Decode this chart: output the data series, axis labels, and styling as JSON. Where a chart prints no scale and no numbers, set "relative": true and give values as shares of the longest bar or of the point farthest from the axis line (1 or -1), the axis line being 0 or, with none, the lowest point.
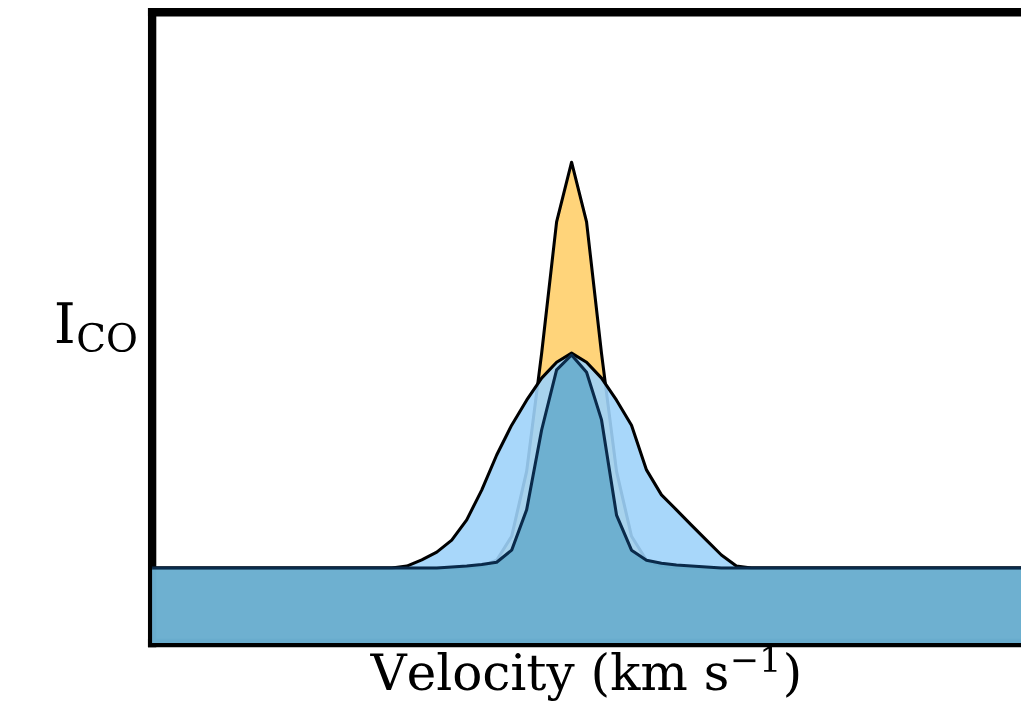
{
  "chart_data": {
    "type": "area",
    "relative": true,
    "ylabel": "I$_{CO}$",
    "xlabel": "Velocity (km s$^{−1}$)",
    "tick_labels": false,
    "grid": false,
    "legend": false,
    "categories": [
      null,
      null,
      null,
      null,
      null,
      null,
      null,
      null,
      null,
      null,
      null,
      null,
      null,
      null,
      null,
      null,
      null,
      null,
      null,
      null,
      null,
      null,
      null,
      null,
      null,
      null,
      null,
      null,
      null,
      null,
      null,
      null,
      null,
      null,
      null,
      null,
      null,
      null,
      null,
      null,
      null,
      null,
      null,
      null,
      null,
      null,
      null,
      null,
      null,
      null,
      null,
      null,
      null,
      null,
      null,
      null,
      null,
      null,
      null
    ],
    "series": [
      {
        "color": "#ffd47a",
        "values": [
          0.156,
          0.156,
          0.156,
          0.156,
          0.156,
          0.156,
          0.156,
          0.156,
          0.156,
          0.156,
          0.156,
          0.156,
          0.156,
          0.156,
          0.156,
          0.156,
          0.156,
          0.156,
          0.156,
          0.156,
          0.156,
          0.156,
          0.159,
          0.172,
          0.222,
          0.357,
          0.602,
          0.876,
          1.0,
          0.876,
          0.602,
          0.357,
          0.222,
          0.172,
          0.159,
          0.156,
          0.156,
          0.156,
          0.156,
          0.156,
          0.156,
          0.156,
          0.156,
          0.156,
          0.156,
          0.156,
          0.156,
          0.156,
          0.156,
          0.156,
          0.156,
          0.156,
          0.156,
          0.156,
          0.156,
          0.156,
          0.156,
          0.156,
          0.156
        ]
      },
      {
        "color": "#9fd3fa",
        "values": [
          0.156,
          0.156,
          0.156,
          0.156,
          0.156,
          0.156,
          0.156,
          0.156,
          0.156,
          0.156,
          0.156,
          0.156,
          0.156,
          0.156,
          0.156,
          0.156,
          0.156,
          0.16,
          0.173,
          0.189,
          0.214,
          0.256,
          0.318,
          0.391,
          0.453,
          0.505,
          0.551,
          0.584,
          0.603,
          0.584,
          0.551,
          0.505,
          0.453,
          0.36,
          0.308,
          0.277,
          0.245,
          0.214,
          0.183,
          0.16,
          0.156,
          0.156,
          0.156,
          0.156,
          0.156,
          0.156,
          0.156,
          0.156,
          0.156,
          0.156,
          0.156,
          0.156,
          0.156,
          0.156,
          0.156,
          0.156,
          0.156,
          0.156,
          0.156
        ]
      },
      {
        "color": "#5fa8c8",
        "values": [
          0.156,
          0.156,
          0.156,
          0.156,
          0.156,
          0.156,
          0.156,
          0.156,
          0.156,
          0.156,
          0.156,
          0.156,
          0.156,
          0.156,
          0.156,
          0.156,
          0.156,
          0.156,
          0.156,
          0.156,
          0.158,
          0.16,
          0.163,
          0.168,
          0.193,
          0.277,
          0.443,
          0.568,
          0.599,
          0.563,
          0.464,
          0.266,
          0.193,
          0.172,
          0.166,
          0.162,
          0.16,
          0.158,
          0.156,
          0.156,
          0.156,
          0.156,
          0.156,
          0.156,
          0.156,
          0.156,
          0.156,
          0.156,
          0.156,
          0.156,
          0.156,
          0.156,
          0.156,
          0.156,
          0.156,
          0.156,
          0.156,
          0.156,
          0.156
        ]
      }
    ]
  }
}
